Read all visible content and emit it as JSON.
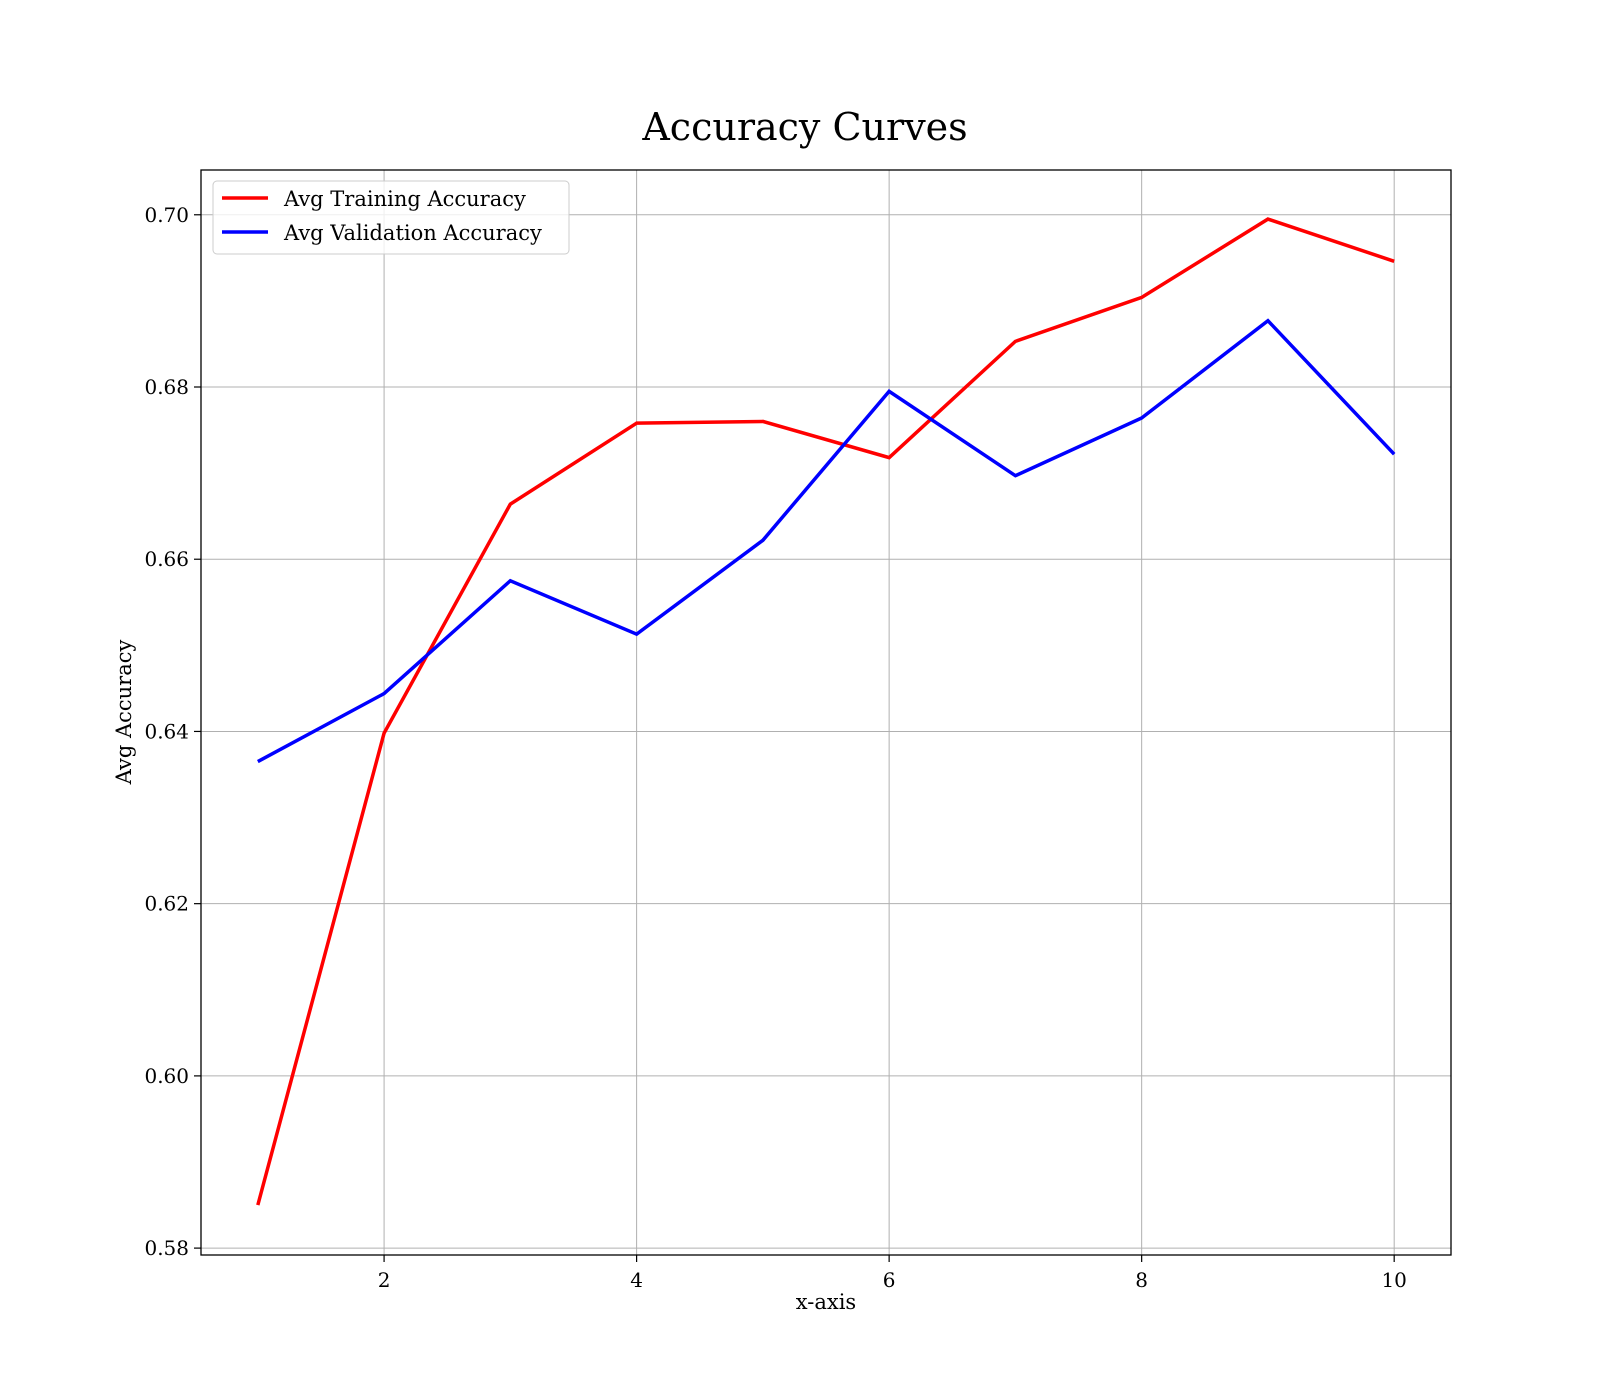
{
  "chart_data": {
    "type": "line",
    "title": "Accuracy Curves",
    "xlabel": "x-axis",
    "ylabel": "Avg Accuracy",
    "x": [
      1,
      2,
      3,
      4,
      5,
      6,
      7,
      8,
      9,
      10
    ],
    "xlim": [
      0.55,
      10.45
    ],
    "ylim": [
      0.5792,
      0.7052
    ],
    "xticks": [
      2,
      4,
      6,
      8,
      10
    ],
    "yticks": [
      0.58,
      0.6,
      0.62,
      0.64,
      0.66,
      0.68,
      0.7
    ],
    "xtick_labels": [
      "2",
      "4",
      "6",
      "8",
      "10"
    ],
    "ytick_labels": [
      "0.58",
      "0.60",
      "0.62",
      "0.64",
      "0.66",
      "0.68",
      "0.70"
    ],
    "grid": true,
    "legend_position": "top-left",
    "series": [
      {
        "name": "Avg Training Accuracy",
        "color": "#ff0000",
        "values": [
          0.585,
          0.6398,
          0.6664,
          0.6758,
          0.676,
          0.6718,
          0.6853,
          0.6904,
          0.6995,
          0.6946
        ]
      },
      {
        "name": "Avg Validation Accuracy",
        "color": "#0000ff",
        "values": [
          0.6365,
          0.6444,
          0.6575,
          0.6513,
          0.6622,
          0.6795,
          0.6697,
          0.6764,
          0.6877,
          0.6722
        ]
      }
    ]
  }
}
